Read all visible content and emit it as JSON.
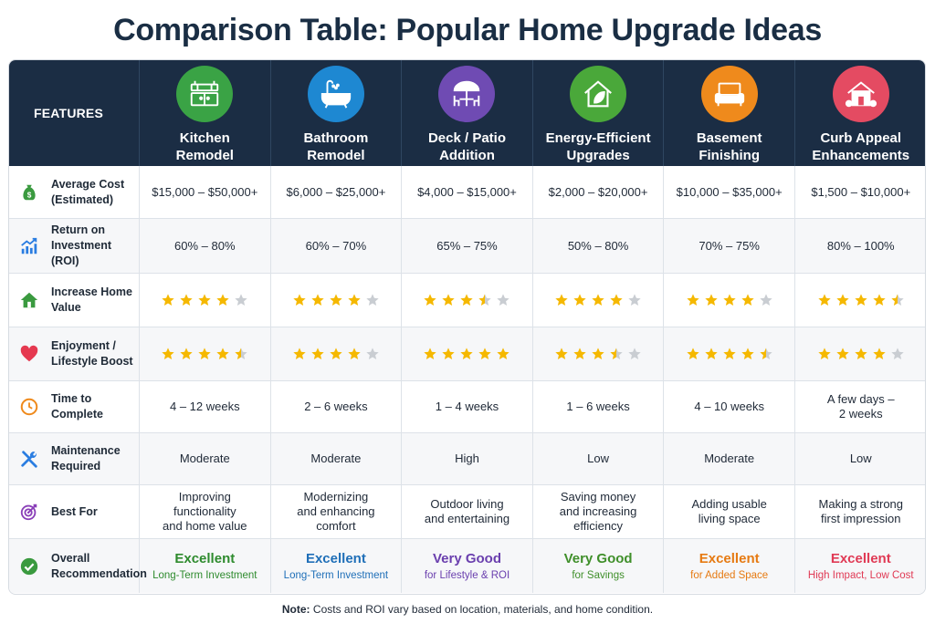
{
  "title": "Comparison Table: Popular Home Upgrade Ideas",
  "features_header": "FEATURES",
  "columns": [
    {
      "title": "Kitchen\nRemodel",
      "icon": "kitchen-icon",
      "color": "#3aa345"
    },
    {
      "title": "Bathroom\nRemodel",
      "icon": "bathtub-icon",
      "color": "#1e88d2"
    },
    {
      "title": "Deck / Patio\nAddition",
      "icon": "patio-umbrella-icon",
      "color": "#6f4bb3"
    },
    {
      "title": "Energy-Efficient\nUpgrades",
      "icon": "eco-house-icon",
      "color": "#4aa83a"
    },
    {
      "title": "Basement\nFinishing",
      "icon": "sofa-icon",
      "color": "#ef8a1c"
    },
    {
      "title": "Curb Appeal\nEnhancements",
      "icon": "house-front-icon",
      "color": "#e44b62"
    }
  ],
  "rows": [
    {
      "label": "Average Cost\n(Estimated)",
      "icon": "money-bag-icon",
      "type": "text",
      "values": [
        "$15,000 – $50,000+",
        "$6,000 – $25,000+",
        "$4,000 – $15,000+",
        "$2,000 – $20,000+",
        "$10,000 – $35,000+",
        "$1,500 – $10,000+"
      ]
    },
    {
      "label": "Return on\nInvestment (ROI)",
      "icon": "growth-chart-icon",
      "type": "text",
      "values": [
        "60% – 80%",
        "60% – 70%",
        "65% – 75%",
        "50% – 80%",
        "70% – 75%",
        "80% – 100%"
      ]
    },
    {
      "label": "Increase Home\nValue",
      "icon": "home-icon",
      "type": "stars",
      "values": [
        4,
        4,
        3.5,
        4,
        4,
        4.5
      ]
    },
    {
      "label": "Enjoyment /\nLifestyle Boost",
      "icon": "heart-icon",
      "type": "stars",
      "values": [
        4.5,
        4,
        5,
        3.5,
        4.5,
        4
      ]
    },
    {
      "label": "Time to Complete",
      "icon": "clock-icon",
      "type": "text",
      "values": [
        "4 – 12 weeks",
        "2 – 6 weeks",
        "1 – 4 weeks",
        "1 – 6 weeks",
        "4 – 10 weeks",
        "A few days –\n2 weeks"
      ]
    },
    {
      "label": "Maintenance\nRequired",
      "icon": "tools-icon",
      "type": "text",
      "values": [
        "Moderate",
        "Moderate",
        "High",
        "Low",
        "Moderate",
        "Low"
      ]
    },
    {
      "label": "Best For",
      "icon": "target-icon",
      "type": "text",
      "values": [
        "Improving\nfunctionality\nand home value",
        "Modernizing\nand enhancing\ncomfort",
        "Outdoor living\nand entertaining",
        "Saving money\nand increasing\nefficiency",
        "Adding usable\nliving space",
        "Making a strong\nfirst impression"
      ]
    },
    {
      "label": "Overall\nRecommendation",
      "icon": "check-circle-icon",
      "type": "rec",
      "values": [
        {
          "main": "Excellent",
          "sub": "Long-Term Investment",
          "color": "#2e8b2e"
        },
        {
          "main": "Excellent",
          "sub": "Long-Term Investment",
          "color": "#1f6fb8"
        },
        {
          "main": "Very Good",
          "sub": "for Lifestyle & ROI",
          "color": "#6a3fae"
        },
        {
          "main": "Very Good",
          "sub": "for Savings",
          "color": "#3f8f2a"
        },
        {
          "main": "Excellent",
          "sub": "for Added Space",
          "color": "#e67a12"
        },
        {
          "main": "Excellent",
          "sub": "High Impact, Low Cost",
          "color": "#e03a55"
        }
      ]
    }
  ],
  "note_label": "Note:",
  "note_text": " Costs and ROI vary based on location, materials, and home condition."
}
